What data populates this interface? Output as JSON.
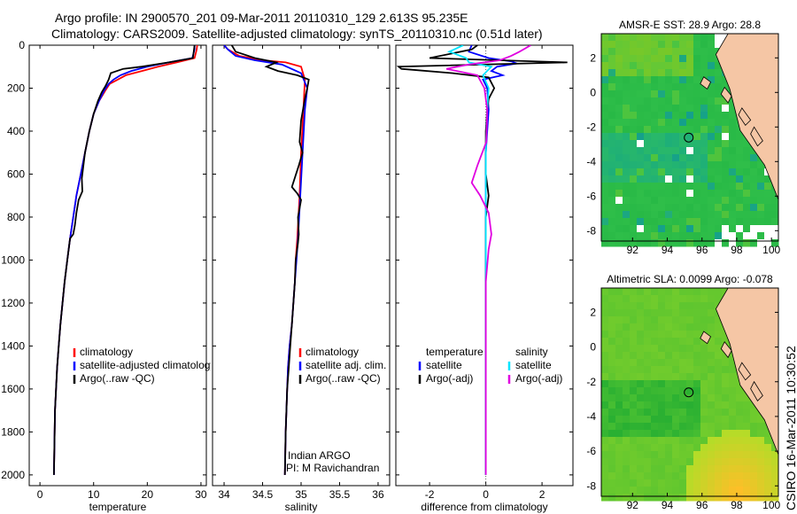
{
  "title_line1": "Argo profile: IN 2900570_201 09-Mar-2011 20110310_129 2.613S 95.235E",
  "title_line2": "Climatology: CARS2009. Satellite-adjusted climatology: synTS_20110310.nc (0.51d later)",
  "credit": "CSIRO 16-Mar-2011 10:30:52",
  "colors": {
    "climatology": "#ff0000",
    "satellite": "#0000ff",
    "argo": "#000000",
    "sal_sat": "#00e5ff",
    "sal_argo": "#e000e0",
    "land": "#f5c6a5"
  },
  "chart_data": [
    {
      "type": "line",
      "id": "temperature",
      "xlabel": "temperature",
      "xlim": [
        -2,
        31
      ],
      "ylim": [
        2050,
        0
      ],
      "xticks": [
        0,
        10,
        20,
        30
      ],
      "xtick_labels": [
        "0",
        "10",
        "20",
        "30"
      ],
      "yticks": [
        0,
        200,
        400,
        600,
        800,
        1000,
        1200,
        1400,
        1600,
        1800,
        2000
      ],
      "ytick_labels": [
        "0",
        "200",
        "400",
        "600",
        "800",
        "1000",
        "1200",
        "1400",
        "1600",
        "1800",
        "2000"
      ],
      "legend": [
        "climatology",
        "satellite-adjusted climatology",
        "Argo(..raw -QC)"
      ],
      "series": [
        {
          "name": "climatology",
          "color": "#ff0000",
          "x": [
            29.3,
            29.2,
            28.8,
            25.5,
            22,
            19,
            16,
            14.5,
            13,
            12.2,
            11,
            10,
            9.2,
            8.4,
            7.6,
            6.8,
            6.2,
            5.6,
            5.1,
            4.6,
            4.2,
            3.8,
            3.5,
            3.2,
            2.8,
            2.6
          ],
          "y": [
            0,
            20,
            60,
            80,
            100,
            120,
            140,
            160,
            180,
            210,
            260,
            320,
            400,
            500,
            600,
            700,
            800,
            900,
            1000,
            1100,
            1200,
            1300,
            1400,
            1500,
            1700,
            2000
          ]
        },
        {
          "name": "satellite-adjusted climatology",
          "color": "#0000ff",
          "x": [
            28.8,
            28.8,
            28.4,
            24,
            20,
            17,
            15,
            13.7,
            12.8,
            12,
            11,
            10,
            9.2,
            8.4,
            7.6,
            6.8,
            6.2,
            5.6,
            5.1,
            4.6,
            4.2,
            3.8,
            3.5,
            3.2,
            2.8,
            2.6
          ],
          "y": [
            0,
            20,
            60,
            80,
            100,
            120,
            140,
            160,
            180,
            210,
            260,
            320,
            400,
            500,
            600,
            700,
            800,
            900,
            1000,
            1100,
            1200,
            1300,
            1400,
            1500,
            1700,
            2000
          ]
        },
        {
          "name": "Argo(..raw -QC)",
          "color": "#000000",
          "x": [
            28.8,
            28.7,
            28.5,
            24,
            19,
            15.5,
            13.2,
            12.8,
            12.2,
            11.5,
            10.8,
            10,
            9.2,
            8.4,
            7.8,
            7.9,
            7.2,
            6.8,
            6.5,
            6.2,
            5.6,
            5.1,
            4.6,
            4.2,
            3.8,
            3.5,
            3.2,
            2.8,
            2.6
          ],
          "y": [
            0,
            20,
            60,
            80,
            100,
            110,
            130,
            160,
            190,
            220,
            260,
            320,
            400,
            500,
            620,
            680,
            720,
            780,
            840,
            880,
            900,
            1000,
            1100,
            1200,
            1300,
            1400,
            1500,
            1700,
            2000
          ]
        }
      ]
    },
    {
      "type": "line",
      "id": "salinity",
      "xlabel": "salinity",
      "xlim": [
        33.85,
        36.15
      ],
      "ylim": [
        2050,
        0
      ],
      "xticks": [
        34,
        34.5,
        35,
        35.5,
        36
      ],
      "xtick_labels": [
        "34",
        "34.5",
        "35",
        "35.5",
        "36"
      ],
      "legend": [
        "climatology",
        "satellite adj. clim.",
        "Argo(..raw -QC)"
      ],
      "annotation": [
        "Indian ARGO",
        "PI: M Ravichandran"
      ],
      "series": [
        {
          "name": "climatology",
          "color": "#ff0000",
          "x": [
            34.0,
            34.05,
            34.2,
            34.5,
            34.8,
            35.0,
            35.05,
            35.03,
            35.0,
            34.98,
            34.95,
            34.93,
            34.92,
            34.9,
            34.88,
            34.85,
            34.83,
            34.82,
            34.8,
            34.79
          ],
          "y": [
            0,
            20,
            50,
            70,
            80,
            100,
            160,
            300,
            500,
            700,
            900,
            1000,
            1100,
            1200,
            1300,
            1400,
            1500,
            1600,
            1800,
            2000
          ]
        },
        {
          "name": "satellite adj. clim.",
          "color": "#0000ff",
          "x": [
            34.0,
            34.05,
            34.15,
            34.4,
            34.75,
            35.0,
            35.08,
            35.05,
            35.02,
            34.99,
            34.96,
            34.94,
            34.92,
            34.9,
            34.88,
            34.85,
            34.83,
            34.82,
            34.8,
            34.79
          ],
          "y": [
            0,
            20,
            50,
            70,
            90,
            130,
            200,
            300,
            500,
            700,
            900,
            1000,
            1100,
            1200,
            1300,
            1400,
            1500,
            1600,
            1800,
            2000
          ]
        },
        {
          "name": "Argo(..raw -QC)",
          "color": "#000000",
          "x": [
            34.1,
            34.15,
            34.4,
            34.68,
            34.55,
            34.7,
            34.95,
            35.1,
            35.08,
            35.05,
            35.0,
            34.98,
            35.02,
            34.97,
            34.88,
            34.95,
            35.0,
            34.96,
            34.97,
            34.96,
            34.93,
            34.92,
            34.9,
            34.88,
            34.86,
            34.84,
            34.82,
            34.8,
            34.79
          ],
          "y": [
            0,
            30,
            60,
            80,
            100,
            120,
            140,
            160,
            200,
            250,
            350,
            450,
            500,
            560,
            660,
            690,
            720,
            800,
            880,
            920,
            1000,
            1100,
            1200,
            1300,
            1400,
            1500,
            1600,
            1800,
            2000
          ]
        }
      ]
    },
    {
      "type": "line",
      "id": "difference",
      "xlabel": "difference from climatology",
      "xlim": [
        -3.2,
        3.1
      ],
      "ylim": [
        2050,
        0
      ],
      "xticks": [
        -2,
        0,
        2
      ],
      "xtick_labels": [
        "-2",
        "0",
        "2"
      ],
      "legend_headers": [
        "temperature",
        "salinity"
      ],
      "legend": [
        "satellite",
        "Argo(-adj)",
        "satellite",
        "Argo(-adj)"
      ],
      "series": [
        {
          "name": "temperature satellite",
          "color": "#0000ff",
          "x": [
            -0.5,
            -0.6,
            0.1,
            0.9,
            1.1,
            0.4,
            0.2,
            0.6,
            -0.1,
            0.05,
            0.1,
            0,
            0,
            0,
            0,
            0,
            0,
            0,
            0
          ],
          "y": [
            0,
            30,
            60,
            75,
            85,
            100,
            120,
            140,
            160,
            200,
            300,
            500,
            700,
            900,
            1100,
            1300,
            1500,
            1800,
            2000
          ]
        },
        {
          "name": "temperature Argo(-adj)",
          "color": "#000000",
          "x": [
            -0.3,
            -0.5,
            -2.0,
            2.9,
            -3.1,
            -3.0,
            -1.2,
            0.1,
            0.3,
            0.1,
            0.05,
            0,
            0,
            0.1,
            0,
            0,
            0,
            0,
            0,
            0
          ],
          "y": [
            0,
            20,
            60,
            80,
            100,
            110,
            130,
            150,
            200,
            250,
            300,
            400,
            600,
            700,
            800,
            1000,
            1200,
            1500,
            1800,
            2000
          ]
        },
        {
          "name": "salinity satellite",
          "color": "#00e5ff",
          "x": [
            -0.8,
            -1.3,
            -0.7,
            -0.6,
            0.2,
            -0.1,
            0.1,
            0.05,
            0,
            0,
            0,
            0,
            0,
            0,
            0,
            0
          ],
          "y": [
            0,
            30,
            60,
            80,
            100,
            140,
            200,
            300,
            500,
            700,
            900,
            1100,
            1300,
            1500,
            1800,
            2000
          ]
        },
        {
          "name": "salinity Argo(-adj)",
          "color": "#e000e0",
          "x": [
            1.6,
            1.2,
            0.9,
            0.5,
            -0.6,
            -1.4,
            -0.3,
            -0.05,
            0.05,
            0.02,
            -0.3,
            -0.5,
            -0.2,
            0.1,
            0.2,
            0.1,
            0,
            0,
            0,
            0
          ],
          "y": [
            0,
            30,
            50,
            70,
            90,
            110,
            140,
            200,
            300,
            450,
            560,
            640,
            700,
            780,
            880,
            950,
            1100,
            1400,
            1700,
            2000
          ]
        }
      ]
    },
    {
      "type": "heatmap",
      "id": "sst-map",
      "title": "AMSR-E SST: 28.9 Argo: 28.8",
      "xlim": [
        90.2,
        100.4
      ],
      "ylim": [
        -8.6,
        3.4
      ],
      "xticks": [
        92,
        94,
        96,
        98,
        100
      ],
      "xtick_labels": [
        "92",
        "94",
        "96",
        "98",
        "100"
      ],
      "yticks": [
        2,
        0,
        -2,
        -4,
        -6,
        -8
      ],
      "ytick_labels": [
        "2",
        "0",
        "-2",
        "-4",
        "-6",
        "-8"
      ],
      "argo_position": [
        95.235,
        -2.613
      ]
    },
    {
      "type": "heatmap",
      "id": "sla-map",
      "title": "Altimetric SLA: 0.0099 Argo: -0.078",
      "xlim": [
        90.2,
        100.4
      ],
      "ylim": [
        -8.6,
        3.4
      ],
      "xticks": [
        92,
        94,
        96,
        98,
        100
      ],
      "xtick_labels": [
        "92",
        "94",
        "96",
        "98",
        "100"
      ],
      "yticks": [
        2,
        0,
        -2,
        -4,
        -6,
        -8
      ],
      "ytick_labels": [
        "2",
        "0",
        "-2",
        "-4",
        "-6",
        "-8"
      ],
      "argo_position": [
        95.235,
        -2.613
      ]
    }
  ]
}
